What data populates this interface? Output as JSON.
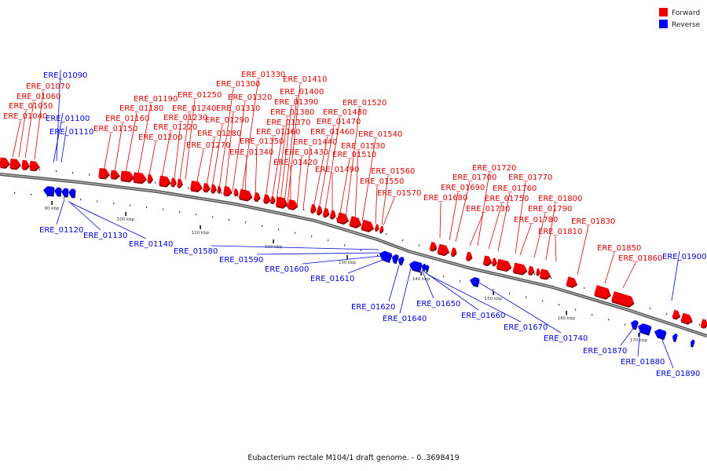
{
  "caption": "Eubacterium rectale M104/1 draft genome. - 0..3698419",
  "legend": [
    {
      "label": "Forward",
      "color": "#ee0000"
    },
    {
      "label": "Reverse",
      "color": "#0000ff"
    }
  ],
  "colors": {
    "forward": "#ee0000",
    "reverse": "#0000ff",
    "backbone": "#888888"
  },
  "ticks": [
    "90 kbp",
    "100 kbp",
    "110 kbp",
    "120 kbp",
    "130 kbp",
    "140 kbp",
    "150 kbp",
    "160 kbp",
    "170 kbp"
  ],
  "genes_forward": [
    "ERE_01040",
    "ERE_01050",
    "ERE_01060",
    "ERE_01070",
    "ERE_01150",
    "ERE_01160",
    "ERE_01180",
    "ERE_01190",
    "ERE_01200",
    "ERE_01220",
    "ERE_01230",
    "ERE_01240",
    "ERE_01250",
    "ERE_01270",
    "ERE_01280",
    "ERE_01290",
    "ERE_01300",
    "ERE_01310",
    "ERE_01320",
    "ERE_01330",
    "ERE_01340",
    "ERE_01350",
    "ERE_01360",
    "ERE_01370",
    "ERE_01380",
    "ERE_01390",
    "ERE_01400",
    "ERE_01410",
    "ERE_01420",
    "ERE_01430",
    "ERE_01440",
    "ERE_01460",
    "ERE_01470",
    "ERE_01480",
    "ERE_01490",
    "ERE_01510",
    "ERE_01520",
    "ERE_01530",
    "ERE_01540",
    "ERE_01550",
    "ERE_01560",
    "ERE_01570",
    "ERE_01680",
    "ERE_01690",
    "ERE_01700",
    "ERE_01720",
    "ERE_01730",
    "ERE_01750",
    "ERE_01760",
    "ERE_01770",
    "ERE_01780",
    "ERE_01790",
    "ERE_01800",
    "ERE_01810",
    "ERE_01830",
    "ERE_01850",
    "ERE_01860"
  ],
  "genes_reverse": [
    "ERE_01090",
    "ERE_01100",
    "ERE_01110",
    "ERE_01120",
    "ERE_01130",
    "ERE_01140",
    "ERE_01580",
    "ERE_01590",
    "ERE_01600",
    "ERE_01610",
    "ERE_01620",
    "ERE_01640",
    "ERE_01650",
    "ERE_01660",
    "ERE_01670",
    "ERE_01740",
    "ERE_01870",
    "ERE_01880",
    "ERE_01890",
    "ERE_01900"
  ]
}
